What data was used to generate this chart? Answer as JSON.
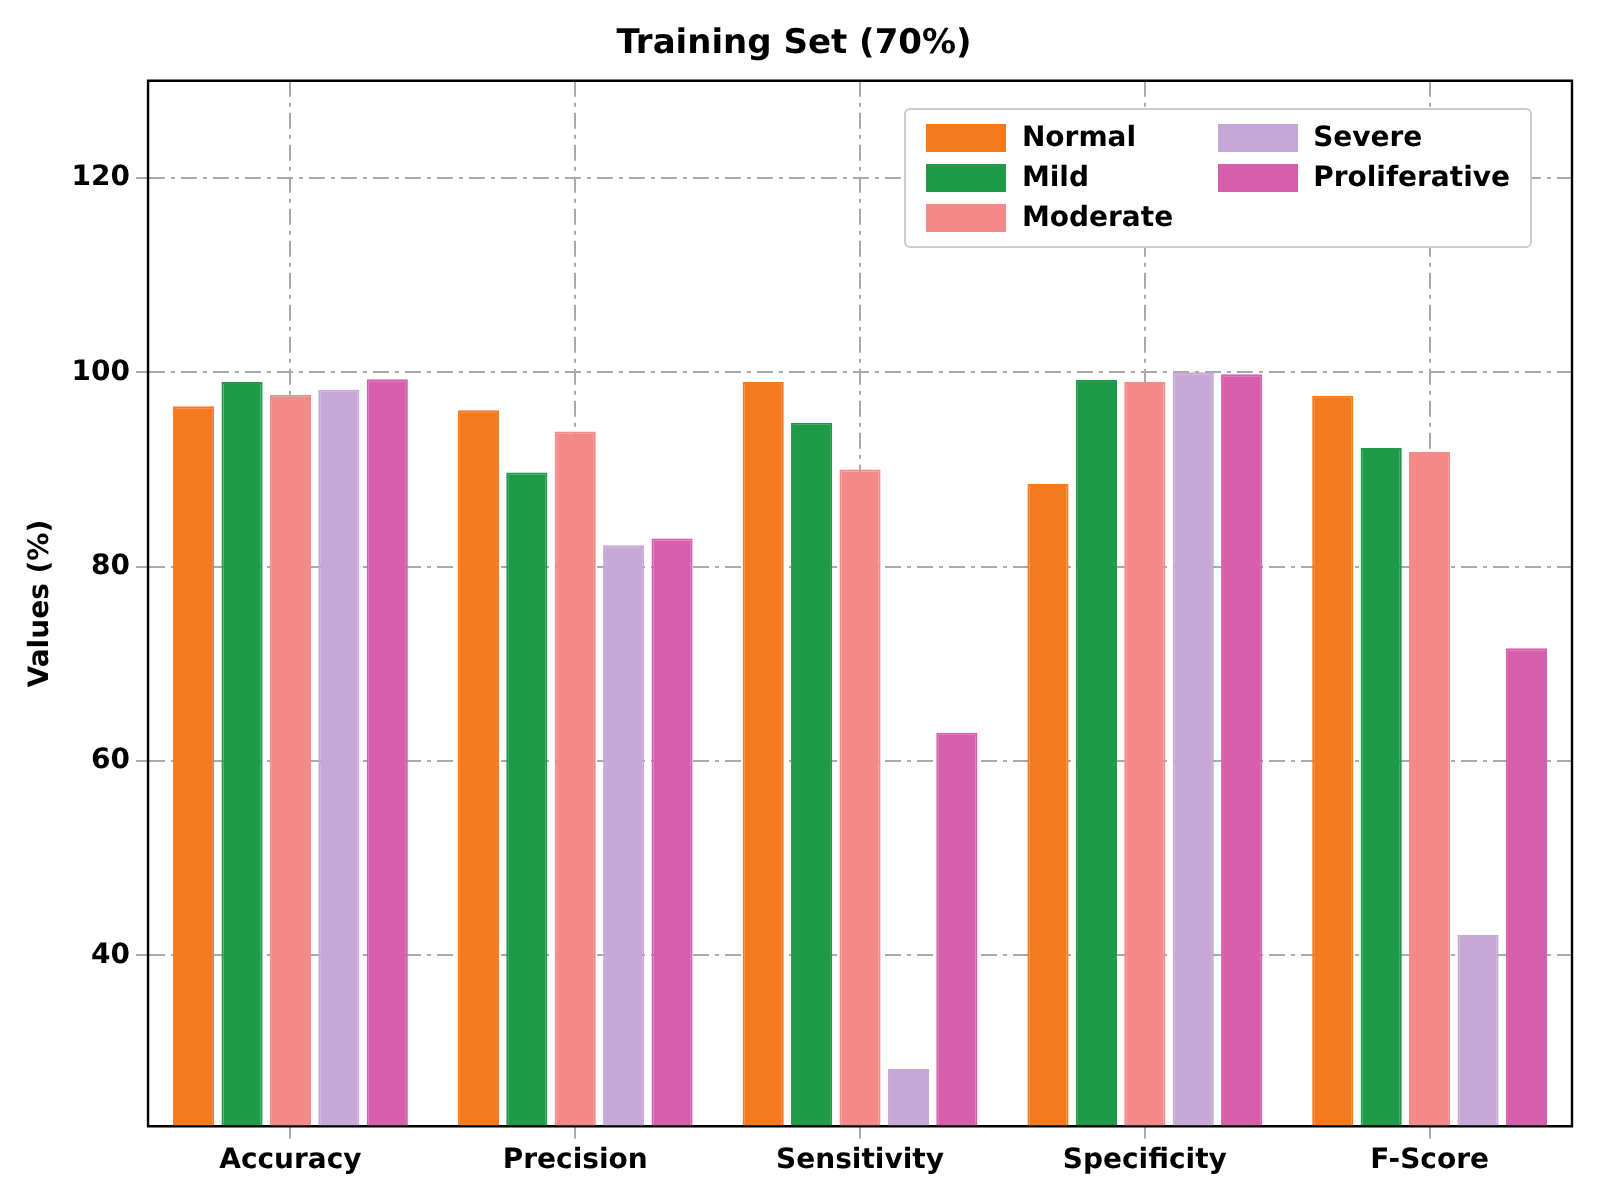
{
  "chart_data": {
    "type": "bar",
    "title": "Training Set (70%)",
    "ylabel": "Values (%)",
    "categories": [
      "Accuracy",
      "Precision",
      "Sensitivity",
      "Specificity",
      "F-Score"
    ],
    "series": [
      {
        "name": "Normal",
        "color": "#f47a20",
        "values": [
          96.5,
          96.1,
          99,
          88.5,
          97.6
        ]
      },
      {
        "name": "Mild",
        "color": "#1e9a48",
        "values": [
          99,
          89.7,
          94.8,
          99.2,
          92.2
        ]
      },
      {
        "name": "Moderate",
        "color": "#f4898a",
        "values": [
          97.7,
          93.9,
          90,
          99,
          91.8
        ]
      },
      {
        "name": "Severe",
        "color": "#c5a8d6",
        "values": [
          98.2,
          82.2,
          28.3,
          100,
          42.1
        ]
      },
      {
        "name": "Proliferative",
        "color": "#d65fac",
        "values": [
          99.3,
          82.9,
          62.9,
          99.8,
          71.6
        ]
      }
    ],
    "ylim": [
      22.4,
      130
    ],
    "yticks": [
      40,
      60,
      80,
      100,
      120
    ],
    "grid": true,
    "legend": "top right"
  }
}
